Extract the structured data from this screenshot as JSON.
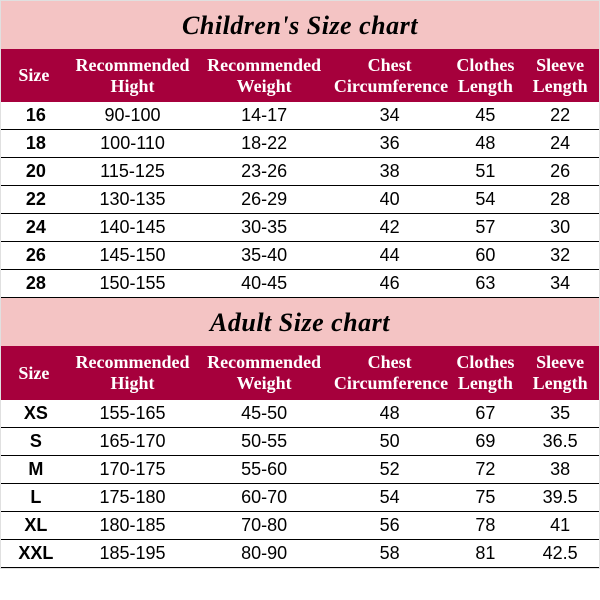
{
  "pink_bg": "#f4c4c4",
  "header_bg": "#a6003c",
  "text_black": "#000000",
  "text_white": "#ffffff",
  "children": {
    "title": "Children's Size chart",
    "columns": [
      "Size",
      "Recommended Hight",
      "Recommended Weight",
      "Chest Circumference",
      "Clothes Length",
      "Sleeve Length"
    ],
    "rows": [
      {
        "size": "16",
        "h": "90-100",
        "w": "14-17",
        "c": "34",
        "cl": "45",
        "s": "22"
      },
      {
        "size": "18",
        "h": "100-110",
        "w": "18-22",
        "c": "36",
        "cl": "48",
        "s": "24"
      },
      {
        "size": "20",
        "h": "115-125",
        "w": "23-26",
        "c": "38",
        "cl": "51",
        "s": "26"
      },
      {
        "size": "22",
        "h": "130-135",
        "w": "26-29",
        "c": "40",
        "cl": "54",
        "s": "28"
      },
      {
        "size": "24",
        "h": "140-145",
        "w": "30-35",
        "c": "42",
        "cl": "57",
        "s": "30"
      },
      {
        "size": "26",
        "h": "145-150",
        "w": "35-40",
        "c": "44",
        "cl": "60",
        "s": "32"
      },
      {
        "size": "28",
        "h": "150-155",
        "w": "40-45",
        "c": "46",
        "cl": "63",
        "s": "34"
      }
    ]
  },
  "adult": {
    "title": "Adult Size chart",
    "columns": [
      "Size",
      "Recommended Hight",
      "Recommended Weight",
      "Chest Circumference",
      "Clothes Length",
      "Sleeve Length"
    ],
    "rows": [
      {
        "size": "XS",
        "h": "155-165",
        "w": "45-50",
        "c": "48",
        "cl": "67",
        "s": "35"
      },
      {
        "size": "S",
        "h": "165-170",
        "w": "50-55",
        "c": "50",
        "cl": "69",
        "s": "36.5"
      },
      {
        "size": "M",
        "h": "170-175",
        "w": "55-60",
        "c": "52",
        "cl": "72",
        "s": "38"
      },
      {
        "size": "L",
        "h": "175-180",
        "w": "60-70",
        "c": "54",
        "cl": "75",
        "s": "39.5"
      },
      {
        "size": "XL",
        "h": "180-185",
        "w": "70-80",
        "c": "56",
        "cl": "78",
        "s": "41"
      },
      {
        "size": "XXL",
        "h": "185-195",
        "w": "80-90",
        "c": "58",
        "cl": "81",
        "s": "42.5"
      }
    ]
  }
}
